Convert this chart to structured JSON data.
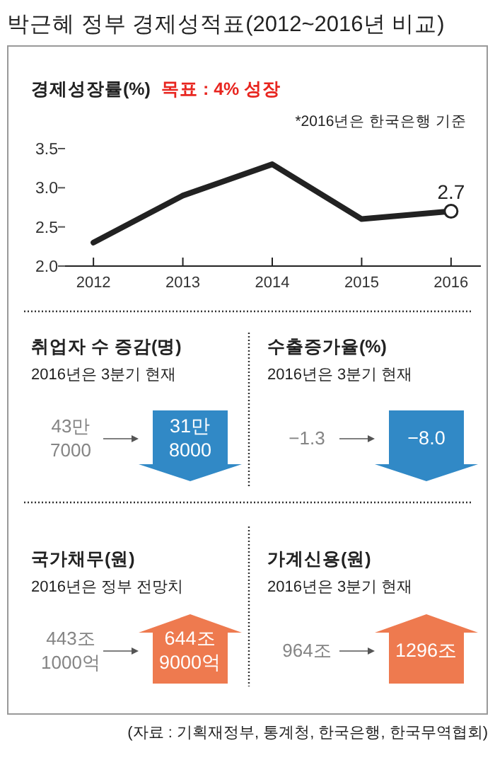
{
  "chart_data": [
    {
      "type": "line",
      "title": "박근혜 정부 경제성적표(2012~2016년 비교)",
      "subtitle": "경제성장률(%)",
      "annotations": [
        "목표 : 4% 성장",
        "*2016년은 한국은행 기준"
      ],
      "categories": [
        "2012",
        "2013",
        "2014",
        "2015",
        "2016"
      ],
      "series": [
        {
          "color": "#222222",
          "values": [
            2.3,
            2.9,
            3.3,
            2.6,
            2.7
          ],
          "value_labels": [
            null,
            null,
            null,
            null,
            "2.7"
          ]
        }
      ],
      "ylim": [
        2.0,
        3.5
      ],
      "yticks": [
        {
          "value": 2.0,
          "label": "2.0"
        },
        2.5,
        {
          "value": 3.0,
          "label": "3.0"
        },
        3.5
      ],
      "line_style": "solid"
    },
    {
      "type": "other",
      "title": "취업자 수 증감(명)",
      "subtitle": "2016년은 3분기 현재",
      "annotations": [
        "43만\n7000",
        "31만\n8000"
      ],
      "colors": [
        "#858585",
        "#3189c6"
      ]
    },
    {
      "type": "other",
      "title": "수출증가율(%)",
      "subtitle": "2016년은 3분기 현재",
      "annotations": [
        "−1.3",
        "−8.0"
      ],
      "colors": [
        "#858585",
        "#3189c6"
      ]
    },
    {
      "type": "other",
      "title": "국가채무(원)",
      "subtitle": "2016년은 정부 전망치",
      "annotations": [
        "443조\n1000억",
        "644조\n9000억"
      ],
      "colors": [
        "#858585",
        "#ee7a4f"
      ]
    },
    {
      "type": "other",
      "title": "가계신용(원)",
      "subtitle": "2016년은 3분기 현재",
      "annotations": [
        "964조",
        "1296조",
        "(자료 : 기획재정부, 통계청, 한국은행, 한국무역협회)"
      ],
      "colors": [
        "#858585",
        "#ee7a4f"
      ]
    }
  ]
}
